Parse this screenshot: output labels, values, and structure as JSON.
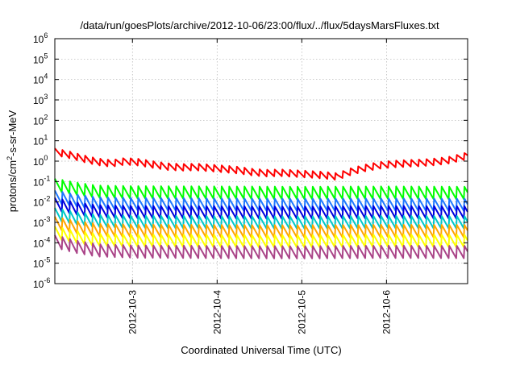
{
  "chart_data": {
    "type": "line",
    "title": "/data/run/goesPlots/archive/2012-10-06/23:00/flux/../flux/5daysMarsFluxes.txt",
    "xlabel": "Coordinated Universal Time (UTC)",
    "ylabel": {
      "prefix": "protons/cm",
      "sup": "2",
      "suffix": "-s-sr-MeV"
    },
    "scale": {
      "y": "log"
    },
    "xlim": [
      "2012-10-02T02:00",
      "2012-10-06T23:00"
    ],
    "ylim": [
      1e-06,
      1000000.0
    ],
    "x_ticks": [
      {
        "date": "2012-10-03T00:00",
        "label": "2012-10-3"
      },
      {
        "date": "2012-10-04T00:00",
        "label": "2012-10-4"
      },
      {
        "date": "2012-10-05T00:00",
        "label": "2012-10-5"
      },
      {
        "date": "2012-10-06T00:00",
        "label": "2012-10-6"
      }
    ],
    "y_ticks": [
      {
        "exp": "-6",
        "value": 1e-06
      },
      {
        "exp": "-5",
        "value": 1e-05
      },
      {
        "exp": "-4",
        "value": 0.0001
      },
      {
        "exp": "-3",
        "value": 0.001
      },
      {
        "exp": "-2",
        "value": 0.01
      },
      {
        "exp": "-1",
        "value": 0.1
      },
      {
        "exp": "0",
        "value": 1
      },
      {
        "exp": "1",
        "value": 10.0
      },
      {
        "exp": "2",
        "value": 100.0
      },
      {
        "exp": "3",
        "value": 1000.0
      },
      {
        "exp": "4",
        "value": 10000.0
      },
      {
        "exp": "5",
        "value": 100000.0
      },
      {
        "exp": "6",
        "value": 1000000.0
      }
    ],
    "tick_base": "10",
    "grid": true,
    "series": [
      {
        "color": "#ff0000",
        "values": [
          [
            "2012-10-02T02:00",
            2.8
          ],
          [
            "2012-10-02T06:00",
            2.0
          ],
          [
            "2012-10-02T10:00",
            1.3
          ],
          [
            "2012-10-02T14:00",
            0.9
          ],
          [
            "2012-10-02T18:00",
            0.75
          ],
          [
            "2012-10-02T22:00",
            0.95
          ],
          [
            "2012-10-03T02:00",
            0.85
          ],
          [
            "2012-10-03T06:00",
            0.65
          ],
          [
            "2012-10-03T10:00",
            0.52
          ],
          [
            "2012-10-03T14:00",
            0.48
          ],
          [
            "2012-10-03T18:00",
            0.5
          ],
          [
            "2012-10-03T22:00",
            0.45
          ],
          [
            "2012-10-04T02:00",
            0.4
          ],
          [
            "2012-10-04T06:00",
            0.35
          ],
          [
            "2012-10-04T10:00",
            0.28
          ],
          [
            "2012-10-04T14:00",
            0.25
          ],
          [
            "2012-10-04T18:00",
            0.26
          ],
          [
            "2012-10-04T22:00",
            0.24
          ],
          [
            "2012-10-05T02:00",
            0.22
          ],
          [
            "2012-10-05T06:00",
            0.2
          ],
          [
            "2012-10-05T10:00",
            0.17
          ],
          [
            "2012-10-05T14:00",
            0.3
          ],
          [
            "2012-10-05T18:00",
            0.45
          ],
          [
            "2012-10-05T22:00",
            0.6
          ],
          [
            "2012-10-06T02:00",
            0.7
          ],
          [
            "2012-10-06T06:00",
            0.75
          ],
          [
            "2012-10-06T10:00",
            0.8
          ],
          [
            "2012-10-06T14:00",
            0.9
          ],
          [
            "2012-10-06T18:00",
            1.1
          ],
          [
            "2012-10-06T23:00",
            1.8
          ]
        ]
      },
      {
        "color": "#00ff00",
        "values": [
          [
            "2012-10-02T02:00",
            0.065
          ],
          [
            "2012-10-02T08:00",
            0.042
          ],
          [
            "2012-10-02T14:00",
            0.03
          ],
          [
            "2012-10-03T00:00",
            0.028
          ],
          [
            "2012-10-04T00:00",
            0.027
          ],
          [
            "2012-10-05T00:00",
            0.026
          ],
          [
            "2012-10-06T00:00",
            0.027
          ],
          [
            "2012-10-06T23:00",
            0.026
          ]
        ]
      },
      {
        "color": "#1e78ff",
        "values": [
          [
            "2012-10-02T02:00",
            0.017
          ],
          [
            "2012-10-02T08:00",
            0.011
          ],
          [
            "2012-10-02T14:00",
            0.008
          ],
          [
            "2012-10-03T00:00",
            0.0075
          ],
          [
            "2012-10-04T00:00",
            0.007
          ],
          [
            "2012-10-05T00:00",
            0.0068
          ],
          [
            "2012-10-06T00:00",
            0.007
          ],
          [
            "2012-10-06T23:00",
            0.0068
          ]
        ]
      },
      {
        "color": "#0000dd",
        "values": [
          [
            "2012-10-02T02:00",
            0.0075
          ],
          [
            "2012-10-02T08:00",
            0.0045
          ],
          [
            "2012-10-02T14:00",
            0.0033
          ],
          [
            "2012-10-03T00:00",
            0.003
          ],
          [
            "2012-10-04T00:00",
            0.0029
          ],
          [
            "2012-10-05T00:00",
            0.0028
          ],
          [
            "2012-10-06T00:00",
            0.003
          ],
          [
            "2012-10-06T23:00",
            0.0029
          ]
        ]
      },
      {
        "color": "#00c8c8",
        "values": [
          [
            "2012-10-02T02:00",
            0.0024
          ],
          [
            "2012-10-02T08:00",
            0.0015
          ],
          [
            "2012-10-02T14:00",
            0.0011
          ],
          [
            "2012-10-03T00:00",
            0.001
          ],
          [
            "2012-10-04T00:00",
            0.00095
          ],
          [
            "2012-10-05T00:00",
            0.00092
          ],
          [
            "2012-10-06T00:00",
            0.00098
          ],
          [
            "2012-10-06T23:00",
            0.00095
          ]
        ]
      },
      {
        "color": "#ffa500",
        "values": [
          [
            "2012-10-02T02:00",
            0.0009
          ],
          [
            "2012-10-02T08:00",
            0.00055
          ],
          [
            "2012-10-02T14:00",
            0.0004
          ],
          [
            "2012-10-03T00:00",
            0.00037
          ],
          [
            "2012-10-04T00:00",
            0.00035
          ],
          [
            "2012-10-05T00:00",
            0.00034
          ],
          [
            "2012-10-06T00:00",
            0.00036
          ],
          [
            "2012-10-06T23:00",
            0.00035
          ]
        ]
      },
      {
        "color": "#ffff00",
        "values": [
          [
            "2012-10-02T02:00",
            0.0003
          ],
          [
            "2012-10-02T08:00",
            0.00018
          ],
          [
            "2012-10-02T14:00",
            0.00013
          ],
          [
            "2012-10-03T00:00",
            0.00012
          ],
          [
            "2012-10-04T00:00",
            0.000115
          ],
          [
            "2012-10-05T00:00",
            0.00011
          ],
          [
            "2012-10-06T00:00",
            0.00012
          ],
          [
            "2012-10-06T23:00",
            0.000115
          ]
        ]
      },
      {
        "color": "#aa4488",
        "values": [
          [
            "2012-10-02T02:00",
            0.00011
          ],
          [
            "2012-10-02T08:00",
            6e-05
          ],
          [
            "2012-10-02T14:00",
            4e-05
          ],
          [
            "2012-10-03T00:00",
            3.5e-05
          ],
          [
            "2012-10-04T00:00",
            3.3e-05
          ],
          [
            "2012-10-05T00:00",
            3.2e-05
          ],
          [
            "2012-10-06T00:00",
            3.4e-05
          ],
          [
            "2012-10-06T23:00",
            3.3e-05
          ]
        ]
      }
    ]
  }
}
